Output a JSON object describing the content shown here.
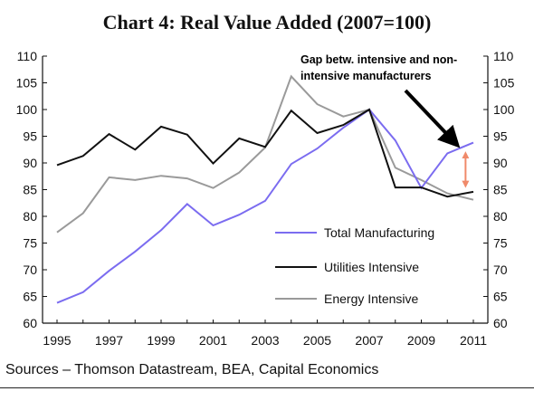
{
  "title": "Chart 4: Real Value Added (2007=100)",
  "source": "Sources – Thomson Datastream, BEA, Capital Economics",
  "chart_data": {
    "type": "line",
    "title": "Chart 4: Real Value Added (2007=100)",
    "xlabel": "",
    "ylabel": "",
    "ylim": [
      60,
      110
    ],
    "xlim": [
      1995,
      2011
    ],
    "y_ticks": [
      60,
      65,
      70,
      75,
      80,
      85,
      90,
      95,
      100,
      105,
      110
    ],
    "x_ticks": [
      1995,
      1997,
      1999,
      2001,
      2003,
      2005,
      2007,
      2009,
      2011
    ],
    "x": [
      1995,
      1996,
      1997,
      1998,
      1999,
      2000,
      2001,
      2002,
      2003,
      2004,
      2005,
      2006,
      2007,
      2008,
      2009,
      2010,
      2011
    ],
    "series": [
      {
        "name": "Total Manufacturing",
        "color": "#7b6cf0",
        "values": [
          63.8,
          65.8,
          69.8,
          73.4,
          77.4,
          82.3,
          78.3,
          80.3,
          82.9,
          89.8,
          92.7,
          96.6,
          100.0,
          94.2,
          85.3,
          91.8,
          93.8
        ]
      },
      {
        "name": "Utilities Intensive",
        "color": "#111111",
        "values": [
          89.6,
          91.3,
          95.4,
          92.5,
          96.8,
          95.3,
          89.9,
          94.6,
          93.0,
          99.8,
          95.6,
          97.1,
          100.0,
          85.4,
          85.4,
          83.7,
          84.6
        ]
      },
      {
        "name": "Energy Intensive",
        "color": "#9a9a9a",
        "values": [
          77.0,
          80.6,
          87.3,
          86.8,
          87.6,
          87.1,
          85.3,
          88.2,
          92.9,
          106.2,
          101.0,
          98.7,
          100.0,
          89.1,
          86.8,
          84.3,
          83.1
        ]
      }
    ],
    "annotation": {
      "text_line1": "Gap betw. intensive and non-",
      "text_line2": "intensive manufacturers",
      "arrow_color": "#000000",
      "gap_marker_color": "#f08a6a",
      "gap_x": 2010.7,
      "gap_y_top": 91.5,
      "gap_y_bottom": 86.0
    },
    "legend_position": "center-right",
    "grid": false
  }
}
